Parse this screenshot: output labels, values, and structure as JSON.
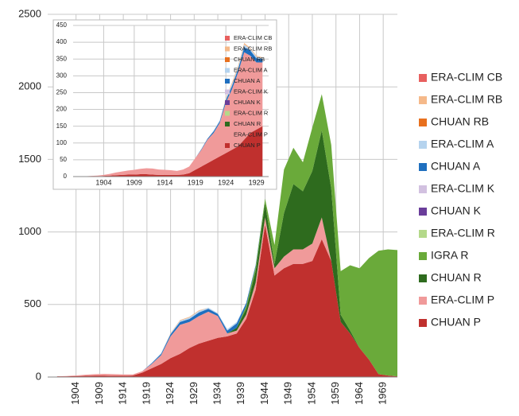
{
  "chart_data": [
    {
      "type": "stacked-area",
      "x": [
        1900,
        1902,
        1904,
        1906,
        1908,
        1910,
        1912,
        1914,
        1916,
        1918,
        1920,
        1922,
        1924,
        1926,
        1928,
        1930,
        1932,
        1934,
        1936,
        1938,
        1940,
        1942,
        1944,
        1946,
        1948,
        1950,
        1952,
        1954,
        1956,
        1958,
        1960,
        1962,
        1964,
        1966,
        1968,
        1970,
        1972
      ],
      "xlim": [
        1898,
        1972
      ],
      "xticks": [
        1904,
        1909,
        1914,
        1919,
        1924,
        1929,
        1934,
        1939,
        1944,
        1949,
        1954,
        1959,
        1964,
        1969
      ],
      "ylim": [
        0,
        2500
      ],
      "yticks": [
        0,
        500,
        1000,
        1500,
        2000,
        2500
      ],
      "grid": true,
      "series": [
        {
          "name": "ERA-CLIM CB",
          "color": "#e8605f",
          "values": [
            0,
            0,
            0,
            0,
            0,
            0,
            0,
            0,
            0,
            0,
            0,
            0,
            0,
            0,
            0,
            0,
            0,
            0,
            0,
            0,
            0,
            0,
            0,
            0,
            0,
            0,
            0,
            0,
            0,
            0,
            0,
            0,
            0,
            0,
            0,
            0,
            0
          ]
        },
        {
          "name": "ERA-CLIM RB",
          "color": "#f5b98a",
          "values": [
            0,
            0,
            0,
            0,
            0,
            0,
            0,
            0,
            0,
            0,
            0,
            0,
            3,
            5,
            5,
            5,
            0,
            0,
            0,
            0,
            0,
            0,
            0,
            0,
            0,
            0,
            0,
            0,
            0,
            0,
            0,
            0,
            0,
            0,
            0,
            0,
            0
          ]
        },
        {
          "name": "CHUAN RB",
          "color": "#e8701e",
          "values": [
            0,
            0,
            0,
            0,
            0,
            0,
            0,
            0,
            0,
            0,
            0,
            0,
            0,
            0,
            0,
            0,
            0,
            0,
            0,
            0,
            0,
            0,
            0,
            0,
            0,
            0,
            0,
            0,
            0,
            0,
            0,
            0,
            0,
            0,
            0,
            0,
            0
          ]
        },
        {
          "name": "ERA-CLIM A",
          "color": "#b5d3ee",
          "values": [
            0,
            0,
            0,
            0,
            0,
            0,
            0,
            0,
            0,
            0,
            2,
            5,
            5,
            8,
            10,
            10,
            8,
            5,
            10,
            10,
            0,
            0,
            0,
            0,
            0,
            0,
            0,
            0,
            0,
            0,
            0,
            0,
            0,
            0,
            0,
            0,
            0
          ]
        },
        {
          "name": "CHUAN A",
          "color": "#1f6fbf",
          "values": [
            0,
            0,
            0,
            0,
            0,
            0,
            0,
            0,
            0,
            0,
            5,
            10,
            15,
            20,
            20,
            25,
            20,
            15,
            20,
            30,
            20,
            10,
            0,
            0,
            0,
            0,
            0,
            0,
            0,
            0,
            0,
            0,
            0,
            0,
            0,
            0,
            0
          ]
        },
        {
          "name": "ERA-CLIM K",
          "color": "#d2c1e0",
          "values": [
            0,
            0,
            0,
            0,
            0,
            0,
            0,
            0,
            0,
            0,
            0,
            0,
            0,
            0,
            0,
            0,
            0,
            0,
            0,
            0,
            0,
            0,
            0,
            0,
            0,
            0,
            0,
            0,
            0,
            0,
            0,
            0,
            0,
            0,
            0,
            0,
            0
          ]
        },
        {
          "name": "CHUAN K",
          "color": "#6a3d9a",
          "values": [
            0,
            0,
            0,
            0,
            0,
            0,
            0,
            0,
            0,
            0,
            0,
            0,
            0,
            0,
            0,
            0,
            0,
            0,
            0,
            0,
            0,
            0,
            0,
            0,
            0,
            0,
            0,
            0,
            0,
            0,
            0,
            0,
            0,
            0,
            0,
            0,
            0
          ]
        },
        {
          "name": "ERA-CLIM R",
          "color": "#b4d98a",
          "values": [
            0,
            0,
            0,
            0,
            0,
            0,
            0,
            0,
            0,
            0,
            0,
            0,
            0,
            0,
            0,
            0,
            0,
            0,
            0,
            0,
            0,
            0,
            0,
            0,
            0,
            0,
            0,
            0,
            0,
            0,
            0,
            0,
            0,
            0,
            0,
            0,
            0
          ]
        },
        {
          "name": "IGRA R",
          "color": "#6aaa3a",
          "values": [
            0,
            0,
            0,
            0,
            0,
            0,
            0,
            0,
            0,
            0,
            0,
            0,
            0,
            0,
            0,
            0,
            0,
            0,
            0,
            0,
            20,
            30,
            30,
            130,
            300,
            250,
            200,
            300,
            250,
            300,
            300,
            450,
            550,
            700,
            850,
            870,
            870
          ]
        },
        {
          "name": "CHUAN R",
          "color": "#2e6b1e",
          "values": [
            0,
            0,
            0,
            0,
            0,
            0,
            0,
            0,
            0,
            0,
            0,
            0,
            0,
            0,
            0,
            0,
            0,
            0,
            0,
            20,
            40,
            80,
            100,
            30,
            300,
            450,
            400,
            500,
            600,
            500,
            50,
            20,
            0,
            0,
            0,
            0,
            0
          ]
        },
        {
          "name": "ERA-CLIM P",
          "color": "#f09a9a",
          "values": [
            0,
            2,
            5,
            8,
            10,
            12,
            12,
            10,
            8,
            10,
            30,
            60,
            150,
            200,
            180,
            190,
            200,
            150,
            20,
            20,
            30,
            50,
            50,
            50,
            80,
            100,
            100,
            120,
            150,
            0,
            0,
            0,
            0,
            0,
            0,
            0,
            0
          ]
        },
        {
          "name": "CHUAN P",
          "color": "#c0302e",
          "values": [
            5,
            5,
            6,
            8,
            10,
            10,
            8,
            8,
            10,
            30,
            60,
            90,
            130,
            160,
            200,
            230,
            250,
            270,
            280,
            300,
            400,
            600,
            1050,
            700,
            750,
            780,
            780,
            800,
            950,
            800,
            380,
            300,
            200,
            120,
            20,
            10,
            5
          ]
        }
      ]
    },
    {
      "type": "stacked-area",
      "x": [
        1900,
        1901,
        1902,
        1903,
        1904,
        1905,
        1906,
        1907,
        1908,
        1909,
        1910,
        1911,
        1912,
        1913,
        1914,
        1915,
        1916,
        1917,
        1918,
        1919,
        1920,
        1921,
        1922,
        1923,
        1924,
        1925,
        1926,
        1927,
        1928,
        1929,
        1930
      ],
      "xlim": [
        1899,
        1931
      ],
      "xticks": [
        1904,
        1909,
        1914,
        1919,
        1924,
        1929
      ],
      "ylim": [
        0,
        450
      ],
      "yticks": [
        0,
        50,
        100,
        150,
        200,
        250,
        300,
        350,
        400,
        450
      ],
      "grid": true,
      "series": [
        {
          "name": "ERA-CLIM CB",
          "color": "#e8605f",
          "values": [
            0,
            0,
            0,
            0,
            0,
            0,
            0,
            0,
            0,
            0,
            0,
            0,
            0,
            0,
            0,
            0,
            0,
            0,
            0,
            0,
            0,
            0,
            0,
            0,
            0,
            0,
            0,
            0,
            0,
            0,
            0
          ]
        },
        {
          "name": "ERA-CLIM RB",
          "color": "#f5b98a",
          "values": [
            0,
            0,
            0,
            0,
            0,
            0,
            0,
            0,
            0,
            0,
            0,
            0,
            0,
            0,
            0,
            0,
            0,
            0,
            0,
            0,
            0,
            0,
            0,
            0,
            3,
            5,
            5,
            5,
            3,
            3,
            2
          ]
        },
        {
          "name": "CHUAN RB",
          "color": "#e8701e",
          "values": [
            0,
            0,
            0,
            0,
            0,
            0,
            0,
            0,
            0,
            0,
            0,
            0,
            0,
            0,
            0,
            0,
            0,
            0,
            0,
            0,
            0,
            0,
            0,
            0,
            0,
            0,
            0,
            0,
            0,
            0,
            0
          ]
        },
        {
          "name": "ERA-CLIM A",
          "color": "#b5d3ee",
          "values": [
            0,
            0,
            0,
            0,
            0,
            0,
            0,
            0,
            0,
            0,
            0,
            0,
            0,
            0,
            0,
            0,
            0,
            0,
            0,
            0,
            0,
            0,
            2,
            3,
            3,
            5,
            5,
            8,
            5,
            5,
            3
          ]
        },
        {
          "name": "CHUAN A",
          "color": "#1f6fbf",
          "values": [
            0,
            0,
            0,
            0,
            0,
            0,
            0,
            0,
            0,
            0,
            0,
            0,
            0,
            0,
            0,
            0,
            0,
            0,
            0,
            0,
            2,
            3,
            5,
            5,
            8,
            10,
            10,
            15,
            15,
            12,
            10
          ]
        },
        {
          "name": "ERA-CLIM K",
          "color": "#d2c1e0",
          "values": [
            0,
            0,
            0,
            0,
            0,
            0,
            0,
            0,
            0,
            0,
            0,
            0,
            0,
            0,
            0,
            0,
            0,
            0,
            0,
            0,
            0,
            0,
            0,
            0,
            0,
            0,
            0,
            0,
            0,
            0,
            0
          ]
        },
        {
          "name": "CHUAN K",
          "color": "#6a3d9a",
          "values": [
            0,
            0,
            0,
            0,
            0,
            0,
            0,
            0,
            0,
            0,
            0,
            0,
            0,
            0,
            0,
            0,
            0,
            0,
            0,
            0,
            0,
            0,
            0,
            0,
            0,
            0,
            0,
            0,
            0,
            0,
            0
          ]
        },
        {
          "name": "ERA-CLIM R",
          "color": "#b4d98a",
          "values": [
            0,
            0,
            0,
            0,
            0,
            0,
            0,
            0,
            0,
            0,
            0,
            0,
            0,
            0,
            0,
            0,
            0,
            0,
            0,
            0,
            0,
            0,
            0,
            0,
            0,
            0,
            0,
            0,
            0,
            0,
            0
          ]
        },
        {
          "name": "CHUAN R",
          "color": "#2e6b1e",
          "values": [
            0,
            0,
            0,
            0,
            0,
            0,
            0,
            0,
            0,
            0,
            0,
            0,
            0,
            0,
            0,
            0,
            0,
            0,
            0,
            0,
            0,
            0,
            0,
            0,
            0,
            0,
            0,
            0,
            0,
            0,
            0
          ]
        },
        {
          "name": "ERA-CLIM P",
          "color": "#f09a9a",
          "values": [
            0,
            0,
            1,
            2,
            3,
            5,
            8,
            10,
            12,
            14,
            16,
            18,
            18,
            16,
            15,
            14,
            12,
            15,
            20,
            35,
            50,
            70,
            80,
            100,
            150,
            180,
            220,
            260,
            230,
            200,
            190
          ]
        },
        {
          "name": "CHUAN P",
          "color": "#c0302e",
          "values": [
            1,
            1,
            1,
            1,
            2,
            3,
            4,
            5,
            6,
            6,
            7,
            7,
            6,
            5,
            5,
            5,
            5,
            6,
            10,
            20,
            30,
            40,
            50,
            60,
            70,
            80,
            90,
            110,
            130,
            140,
            150
          ]
        }
      ]
    }
  ]
}
